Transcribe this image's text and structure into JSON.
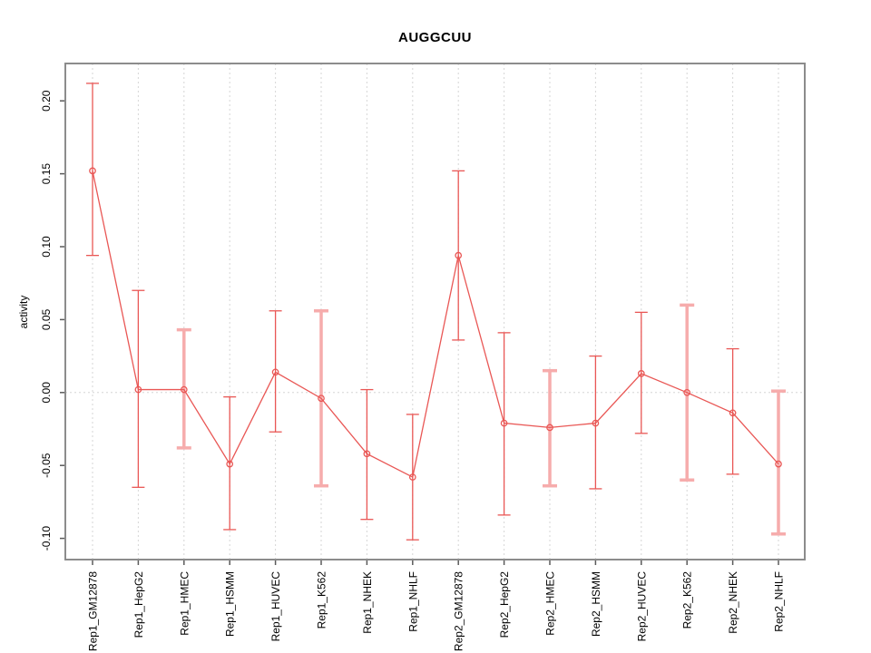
{
  "page": {
    "background": "#ffffff"
  },
  "chart_data": {
    "type": "line",
    "title": "AUGGCUU",
    "xlabel": "",
    "ylabel": "activity",
    "legend": "none",
    "grid": {
      "vertical": "dotted line at every category",
      "horizontal": "dotted line at y=0 only"
    },
    "marker": "open-circle",
    "error_bars": true,
    "x_tick_label_rotation_deg": 90,
    "y_tick_label_rotation_deg": 90,
    "ylim": [
      -0.115,
      0.226
    ],
    "yticks": [
      -0.1,
      -0.05,
      0.0,
      0.05,
      0.1,
      0.15,
      0.2
    ],
    "ytick_labels": [
      "-0.10",
      "-0.05",
      "0.00",
      "0.05",
      "0.10",
      "0.15",
      "0.20"
    ],
    "categories": [
      "Rep1_GM12878",
      "Rep1_HepG2",
      "Rep1_HMEC",
      "Rep1_HSMM",
      "Rep1_HUVEC",
      "Rep1_K562",
      "Rep1_NHEK",
      "Rep1_NHLF",
      "Rep2_GM12878",
      "Rep2_HepG2",
      "Rep2_HMEC",
      "Rep2_HSMM",
      "Rep2_HUVEC",
      "Rep2_K562",
      "Rep2_NHEK",
      "Rep2_NHLF"
    ],
    "series": [
      {
        "name": "activity",
        "values": [
          0.152,
          0.002,
          0.002,
          -0.049,
          0.014,
          -0.004,
          -0.042,
          -0.058,
          0.094,
          -0.021,
          -0.024,
          -0.021,
          0.013,
          0.0,
          -0.014,
          -0.049
        ],
        "lower": [
          0.094,
          -0.065,
          -0.038,
          -0.094,
          -0.027,
          -0.064,
          -0.087,
          -0.101,
          0.036,
          -0.084,
          -0.064,
          -0.066,
          -0.028,
          -0.06,
          -0.056,
          -0.097
        ],
        "upper": [
          0.212,
          0.07,
          0.043,
          -0.003,
          0.056,
          0.056,
          0.002,
          -0.015,
          0.152,
          0.041,
          0.015,
          0.025,
          0.055,
          0.06,
          0.03,
          0.001
        ],
        "thick_bar": [
          false,
          false,
          true,
          false,
          false,
          true,
          false,
          false,
          false,
          false,
          true,
          false,
          false,
          true,
          false,
          true
        ]
      }
    ],
    "colors": {
      "line": "#e95755",
      "thick_band": "#f6acac",
      "grid": "#d6d6d6",
      "box": "#8c8c8c",
      "tick": "#5a5a5a",
      "text": "#000000"
    }
  }
}
